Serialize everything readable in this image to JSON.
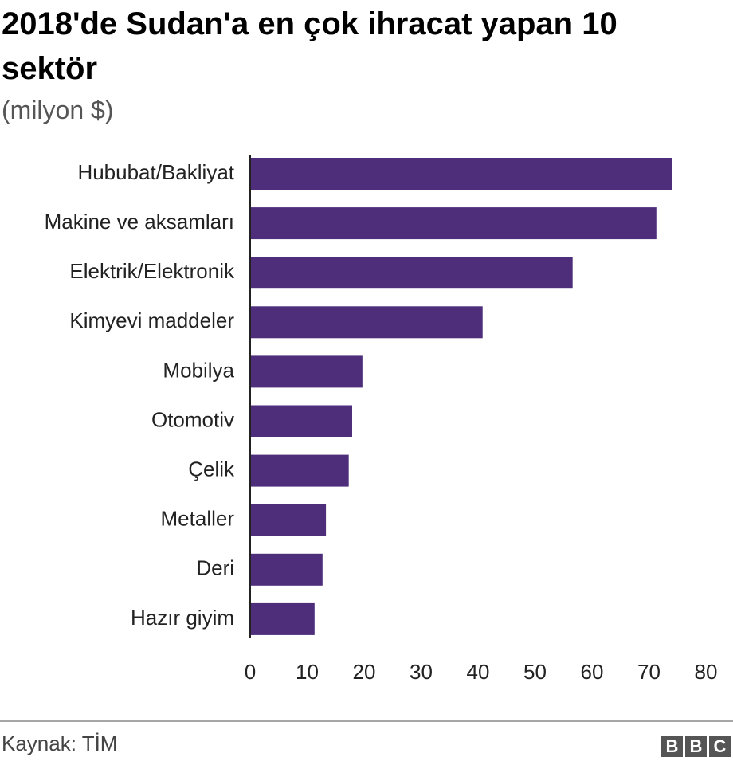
{
  "chart_data": {
    "type": "bar",
    "orientation": "horizontal",
    "title": "2018'de Sudan'a en çok ihracat yapan 10 sektör",
    "subtitle": "(milyon $)",
    "categories": [
      "Hububat/Bakliyat",
      "Makine ve aksamları",
      "Elektrik/Elektronik",
      "Kimyevi maddeler",
      "Mobilya",
      "Otomotiv",
      "Çelik",
      "Metaller",
      "Deri",
      "Hazır giyim"
    ],
    "values": [
      74.0,
      71.3,
      56.6,
      40.8,
      19.7,
      17.9,
      17.3,
      13.3,
      12.7,
      11.3
    ],
    "color": "#4e2e7b",
    "xlim": [
      0,
      80
    ],
    "xticks": [
      0,
      10,
      20,
      30,
      40,
      50,
      60,
      70,
      80
    ],
    "grid": false,
    "source": "Kaynak: TİM",
    "logo": [
      "B",
      "B",
      "C"
    ]
  }
}
